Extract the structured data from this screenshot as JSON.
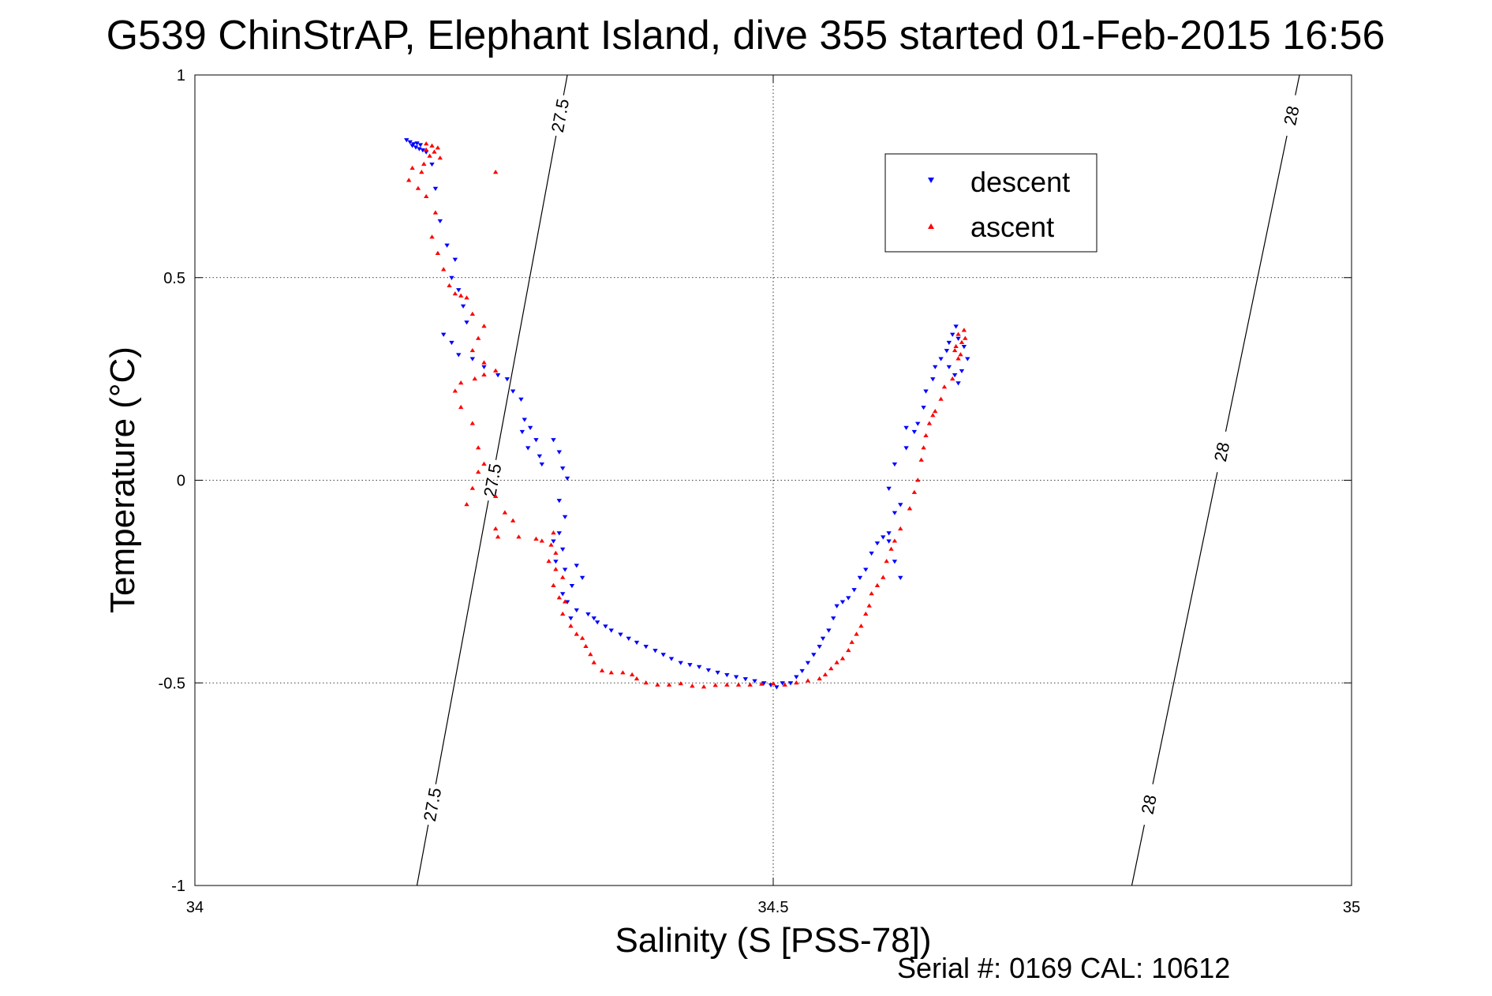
{
  "chart_data": {
    "type": "scatter",
    "title": "G539 ChinStrAP, Elephant Island, dive 355 started 01-Feb-2015 16:56",
    "xlabel": "Salinity (S [PSS-78])",
    "ylabel": "Temperature (°C)",
    "footer": "Serial #: 0169 CAL: 10612",
    "xlim": [
      34,
      35
    ],
    "ylim": [
      -1,
      1
    ],
    "xticks": [
      34,
      34.5,
      35
    ],
    "xtick_labels": [
      "34",
      "34.5",
      "35"
    ],
    "yticks": [
      -1,
      -0.5,
      0,
      0.5,
      1
    ],
    "ytick_labels": [
      "-1",
      "-0.5",
      "0",
      "0.5",
      "1"
    ],
    "grid": true,
    "legend_placement": "top-right",
    "density_contours": [
      {
        "label": "27.5",
        "x_at_ymin": 34.192,
        "x_at_ymax": 34.322,
        "label_y": [
          -0.8,
          0.0,
          0.9
        ]
      },
      {
        "label": "28",
        "x_at_ymin": 34.81,
        "x_at_ymax": 34.955,
        "label_y": [
          -0.8,
          0.07,
          0.9
        ]
      }
    ],
    "series": [
      {
        "name": "descent",
        "color": "#0000ff",
        "marker": "triangle-down",
        "points": [
          [
            34.183,
            0.84
          ],
          [
            34.186,
            0.835
          ],
          [
            34.189,
            0.83
          ],
          [
            34.192,
            0.832
          ],
          [
            34.195,
            0.828
          ],
          [
            34.188,
            0.826
          ],
          [
            34.191,
            0.822
          ],
          [
            34.194,
            0.818
          ],
          [
            34.197,
            0.815
          ],
          [
            34.2,
            0.81
          ],
          [
            34.205,
            0.78
          ],
          [
            34.208,
            0.72
          ],
          [
            34.212,
            0.64
          ],
          [
            34.218,
            0.58
          ],
          [
            34.225,
            0.545
          ],
          [
            34.222,
            0.5
          ],
          [
            34.228,
            0.47
          ],
          [
            34.232,
            0.43
          ],
          [
            34.235,
            0.39
          ],
          [
            34.215,
            0.36
          ],
          [
            34.222,
            0.34
          ],
          [
            34.228,
            0.31
          ],
          [
            34.24,
            0.3
          ],
          [
            34.25,
            0.28
          ],
          [
            34.262,
            0.26
          ],
          [
            34.27,
            0.25
          ],
          [
            34.275,
            0.22
          ],
          [
            34.282,
            0.2
          ],
          [
            34.285,
            0.15
          ],
          [
            34.29,
            0.13
          ],
          [
            34.283,
            0.12
          ],
          [
            34.295,
            0.1
          ],
          [
            34.288,
            0.08
          ],
          [
            34.298,
            0.06
          ],
          [
            34.3,
            0.04
          ],
          [
            34.31,
            0.1
          ],
          [
            34.315,
            0.07
          ],
          [
            34.318,
            0.03
          ],
          [
            34.322,
            0.005
          ],
          [
            34.315,
            -0.05
          ],
          [
            34.32,
            -0.09
          ],
          [
            34.315,
            -0.13
          ],
          [
            34.31,
            -0.15
          ],
          [
            34.318,
            -0.17
          ],
          [
            34.312,
            -0.2
          ],
          [
            34.32,
            -0.22
          ],
          [
            34.33,
            -0.21
          ],
          [
            34.335,
            -0.24
          ],
          [
            34.326,
            -0.26
          ],
          [
            34.318,
            -0.28
          ],
          [
            34.322,
            -0.3
          ],
          [
            34.33,
            -0.32
          ],
          [
            34.325,
            -0.34
          ],
          [
            34.34,
            -0.33
          ],
          [
            34.345,
            -0.34
          ],
          [
            34.348,
            -0.35
          ],
          [
            34.355,
            -0.36
          ],
          [
            34.36,
            -0.37
          ],
          [
            34.368,
            -0.38
          ],
          [
            34.375,
            -0.39
          ],
          [
            34.382,
            -0.4
          ],
          [
            34.39,
            -0.41
          ],
          [
            34.398,
            -0.42
          ],
          [
            34.405,
            -0.43
          ],
          [
            34.412,
            -0.44
          ],
          [
            34.42,
            -0.45
          ],
          [
            34.428,
            -0.455
          ],
          [
            34.436,
            -0.46
          ],
          [
            34.444,
            -0.468
          ],
          [
            34.452,
            -0.474
          ],
          [
            34.46,
            -0.48
          ],
          [
            34.468,
            -0.485
          ],
          [
            34.476,
            -0.49
          ],
          [
            34.484,
            -0.495
          ],
          [
            34.492,
            -0.5
          ],
          [
            34.498,
            -0.505
          ],
          [
            34.503,
            -0.51
          ],
          [
            34.508,
            -0.5
          ],
          [
            34.515,
            -0.5
          ],
          [
            34.52,
            -0.485
          ],
          [
            34.525,
            -0.47
          ],
          [
            34.53,
            -0.45
          ],
          [
            34.535,
            -0.43
          ],
          [
            34.54,
            -0.41
          ],
          [
            34.543,
            -0.39
          ],
          [
            34.548,
            -0.37
          ],
          [
            34.552,
            -0.34
          ],
          [
            34.555,
            -0.31
          ],
          [
            34.56,
            -0.3
          ],
          [
            34.565,
            -0.29
          ],
          [
            34.57,
            -0.27
          ],
          [
            34.575,
            -0.24
          ],
          [
            34.58,
            -0.22
          ],
          [
            34.585,
            -0.18
          ],
          [
            34.59,
            -0.155
          ],
          [
            34.595,
            -0.14
          ],
          [
            34.6,
            -0.13
          ],
          [
            34.605,
            -0.2
          ],
          [
            34.61,
            -0.24
          ],
          [
            34.6,
            -0.15
          ],
          [
            34.605,
            -0.08
          ],
          [
            34.61,
            -0.06
          ],
          [
            34.6,
            -0.02
          ],
          [
            34.605,
            0.04
          ],
          [
            34.615,
            0.08
          ],
          [
            34.622,
            0.12
          ],
          [
            34.625,
            0.14
          ],
          [
            34.615,
            0.13
          ],
          [
            34.63,
            0.18
          ],
          [
            34.632,
            0.22
          ],
          [
            34.638,
            0.25
          ],
          [
            34.64,
            0.28
          ],
          [
            34.645,
            0.3
          ],
          [
            34.65,
            0.32
          ],
          [
            34.652,
            0.34
          ],
          [
            34.655,
            0.36
          ],
          [
            34.658,
            0.38
          ],
          [
            34.66,
            0.35
          ],
          [
            34.665,
            0.33
          ],
          [
            34.663,
            0.27
          ],
          [
            34.66,
            0.24
          ],
          [
            34.668,
            0.3
          ],
          [
            34.652,
            0.28
          ],
          [
            34.657,
            0.26
          ]
        ]
      },
      {
        "name": "ascent",
        "color": "#ff0000",
        "marker": "triangle-up",
        "points": [
          [
            34.2,
            0.83
          ],
          [
            34.205,
            0.825
          ],
          [
            34.21,
            0.82
          ],
          [
            34.2,
            0.815
          ],
          [
            34.207,
            0.81
          ],
          [
            34.203,
            0.8
          ],
          [
            34.212,
            0.795
          ],
          [
            34.198,
            0.78
          ],
          [
            34.188,
            0.77
          ],
          [
            34.196,
            0.76
          ],
          [
            34.185,
            0.74
          ],
          [
            34.193,
            0.72
          ],
          [
            34.2,
            0.7
          ],
          [
            34.208,
            0.66
          ],
          [
            34.205,
            0.6
          ],
          [
            34.21,
            0.56
          ],
          [
            34.215,
            0.52
          ],
          [
            34.22,
            0.48
          ],
          [
            34.225,
            0.46
          ],
          [
            34.23,
            0.455
          ],
          [
            34.235,
            0.45
          ],
          [
            34.24,
            0.41
          ],
          [
            34.25,
            0.38
          ],
          [
            34.245,
            0.35
          ],
          [
            34.24,
            0.32
          ],
          [
            34.25,
            0.29
          ],
          [
            34.26,
            0.27
          ],
          [
            34.25,
            0.26
          ],
          [
            34.242,
            0.25
          ],
          [
            34.23,
            0.24
          ],
          [
            34.225,
            0.22
          ],
          [
            34.23,
            0.18
          ],
          [
            34.24,
            0.14
          ],
          [
            34.245,
            0.08
          ],
          [
            34.25,
            0.04
          ],
          [
            34.245,
            0.02
          ],
          [
            34.24,
            -0.02
          ],
          [
            34.235,
            -0.06
          ],
          [
            34.26,
            -0.04
          ],
          [
            34.268,
            -0.08
          ],
          [
            34.275,
            -0.1
          ],
          [
            34.26,
            -0.12
          ],
          [
            34.262,
            -0.14
          ],
          [
            34.28,
            -0.14
          ],
          [
            34.295,
            -0.145
          ],
          [
            34.31,
            -0.13
          ],
          [
            34.3,
            -0.15
          ],
          [
            34.308,
            -0.16
          ],
          [
            34.312,
            -0.18
          ],
          [
            34.306,
            -0.2
          ],
          [
            34.312,
            -0.22
          ],
          [
            34.318,
            -0.24
          ],
          [
            34.31,
            -0.26
          ],
          [
            34.315,
            -0.29
          ],
          [
            34.32,
            -0.3
          ],
          [
            34.318,
            -0.33
          ],
          [
            34.325,
            -0.36
          ],
          [
            34.33,
            -0.38
          ],
          [
            34.335,
            -0.39
          ],
          [
            34.338,
            -0.41
          ],
          [
            34.342,
            -0.43
          ],
          [
            34.345,
            -0.45
          ],
          [
            34.352,
            -0.47
          ],
          [
            34.36,
            -0.475
          ],
          [
            34.37,
            -0.475
          ],
          [
            34.378,
            -0.48
          ],
          [
            34.382,
            -0.49
          ],
          [
            34.39,
            -0.5
          ],
          [
            34.4,
            -0.505
          ],
          [
            34.41,
            -0.505
          ],
          [
            34.42,
            -0.502
          ],
          [
            34.43,
            -0.508
          ],
          [
            34.44,
            -0.51
          ],
          [
            34.45,
            -0.506
          ],
          [
            34.46,
            -0.505
          ],
          [
            34.47,
            -0.505
          ],
          [
            34.48,
            -0.505
          ],
          [
            34.49,
            -0.503
          ],
          [
            34.5,
            -0.502
          ],
          [
            34.51,
            -0.505
          ],
          [
            34.52,
            -0.5
          ],
          [
            34.53,
            -0.495
          ],
          [
            34.54,
            -0.49
          ],
          [
            34.545,
            -0.48
          ],
          [
            34.55,
            -0.465
          ],
          [
            34.555,
            -0.45
          ],
          [
            34.56,
            -0.44
          ],
          [
            34.565,
            -0.42
          ],
          [
            34.568,
            -0.4
          ],
          [
            34.572,
            -0.38
          ],
          [
            34.576,
            -0.36
          ],
          [
            34.58,
            -0.33
          ],
          [
            34.583,
            -0.31
          ],
          [
            34.585,
            -0.28
          ],
          [
            34.59,
            -0.26
          ],
          [
            34.595,
            -0.24
          ],
          [
            34.598,
            -0.2
          ],
          [
            34.602,
            -0.17
          ],
          [
            34.605,
            -0.15
          ],
          [
            34.61,
            -0.12
          ],
          [
            34.618,
            -0.07
          ],
          [
            34.622,
            -0.03
          ],
          [
            34.625,
            0.0
          ],
          [
            34.628,
            0.05
          ],
          [
            34.63,
            0.08
          ],
          [
            34.632,
            0.11
          ],
          [
            34.635,
            0.14
          ],
          [
            34.638,
            0.16
          ],
          [
            34.64,
            0.17
          ],
          [
            34.645,
            0.2
          ],
          [
            34.648,
            0.23
          ],
          [
            34.655,
            0.25
          ],
          [
            34.66,
            0.3
          ],
          [
            34.657,
            0.32
          ],
          [
            34.663,
            0.34
          ],
          [
            34.66,
            0.36
          ],
          [
            34.665,
            0.37
          ],
          [
            34.658,
            0.33
          ],
          [
            34.662,
            0.31
          ],
          [
            34.666,
            0.35
          ],
          [
            34.26,
            0.76
          ]
        ]
      }
    ]
  }
}
